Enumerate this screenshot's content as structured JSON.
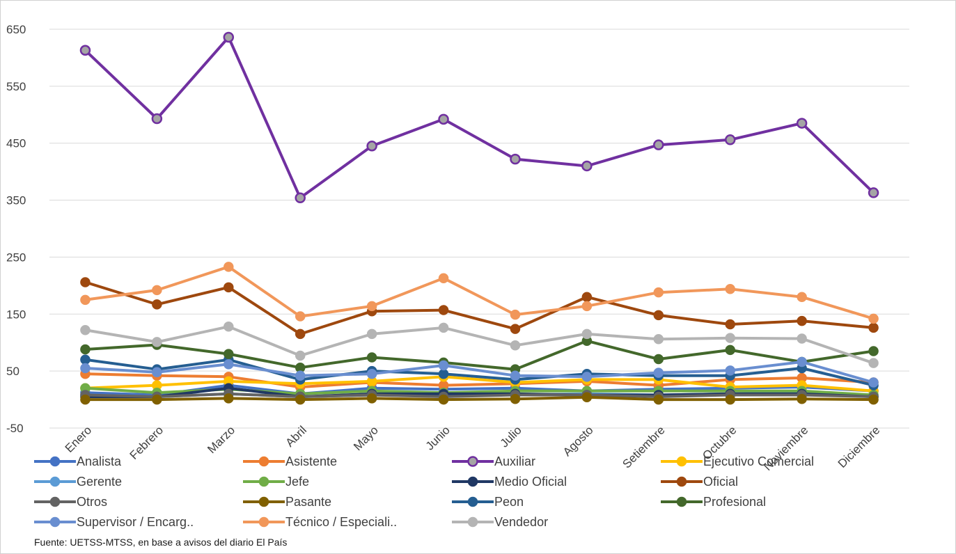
{
  "chart_data": {
    "type": "line",
    "title": "",
    "xlabel": "",
    "ylabel": "",
    "ylim": [
      -50,
      650
    ],
    "yticks": [
      -50,
      50,
      150,
      250,
      350,
      450,
      550,
      650
    ],
    "grid": true,
    "legend_position": "bottom",
    "categories": [
      "Enero",
      "Febrero",
      "Marzo",
      "Abril",
      "Mayo",
      "Junio",
      "Julio",
      "Agosto",
      "Setiembre",
      "Octubre",
      "Noviembre",
      "Diciembre"
    ],
    "series": [
      {
        "name": "Analista",
        "color": "#4472C4",
        "values": [
          12,
          8,
          25,
          10,
          20,
          18,
          20,
          15,
          18,
          20,
          22,
          15
        ]
      },
      {
        "name": "Asistente",
        "color": "#ED7D31",
        "values": [
          45,
          42,
          40,
          22,
          30,
          25,
          28,
          32,
          25,
          35,
          38,
          30
        ]
      },
      {
        "name": "Auxiliar",
        "color": "#7030A0",
        "values": [
          613,
          493,
          636,
          354,
          445,
          492,
          422,
          410,
          447,
          456,
          485,
          363
        ]
      },
      {
        "name": "Ejecutivo Comercial",
        "color": "#FFC000",
        "values": [
          20,
          25,
          32,
          28,
          32,
          40,
          30,
          35,
          35,
          22,
          25,
          15
        ]
      },
      {
        "name": "Gerente",
        "color": "#5B9BD5",
        "values": [
          8,
          5,
          10,
          5,
          8,
          8,
          8,
          10,
          8,
          10,
          12,
          5
        ]
      },
      {
        "name": "Jefe",
        "color": "#70AD47",
        "values": [
          20,
          12,
          18,
          10,
          15,
          12,
          15,
          15,
          15,
          15,
          15,
          8
        ]
      },
      {
        "name": "Medio Oficial",
        "color": "#203864",
        "values": [
          5,
          5,
          20,
          5,
          10,
          10,
          10,
          8,
          8,
          10,
          10,
          5
        ]
      },
      {
        "name": "Oficial",
        "color": "#9E480E",
        "values": [
          206,
          167,
          197,
          115,
          155,
          157,
          124,
          180,
          148,
          132,
          138,
          126
        ]
      },
      {
        "name": "Otros",
        "color": "#636363",
        "values": [
          8,
          5,
          10,
          5,
          8,
          5,
          8,
          8,
          5,
          8,
          8,
          5
        ]
      },
      {
        "name": "Pasante",
        "color": "#806000",
        "values": [
          0,
          0,
          2,
          0,
          2,
          0,
          1,
          4,
          0,
          0,
          1,
          0
        ]
      },
      {
        "name": "Peon",
        "color": "#255E91",
        "values": [
          70,
          53,
          70,
          35,
          50,
          45,
          35,
          45,
          42,
          42,
          55,
          25
        ]
      },
      {
        "name": "Profesional",
        "color": "#43682B",
        "values": [
          88,
          96,
          80,
          56,
          74,
          65,
          53,
          103,
          71,
          87,
          66,
          85
        ]
      },
      {
        "name": "Supervisor / Encarg..",
        "color": "#698ED0",
        "values": [
          55,
          48,
          62,
          42,
          45,
          60,
          42,
          40,
          47,
          51,
          66,
          30
        ]
      },
      {
        "name": "Técnico / Especiali..",
        "color": "#F1975A",
        "values": [
          175,
          192,
          233,
          146,
          164,
          213,
          149,
          164,
          188,
          194,
          180,
          142
        ]
      },
      {
        "name": "Vendedor",
        "color": "#B4B4B4",
        "values": [
          122,
          101,
          128,
          77,
          115,
          126,
          95,
          115,
          106,
          108,
          107,
          64
        ]
      }
    ]
  },
  "source_note": "Fuente: UETSS-MTSS, en base a avisos del diario El País"
}
